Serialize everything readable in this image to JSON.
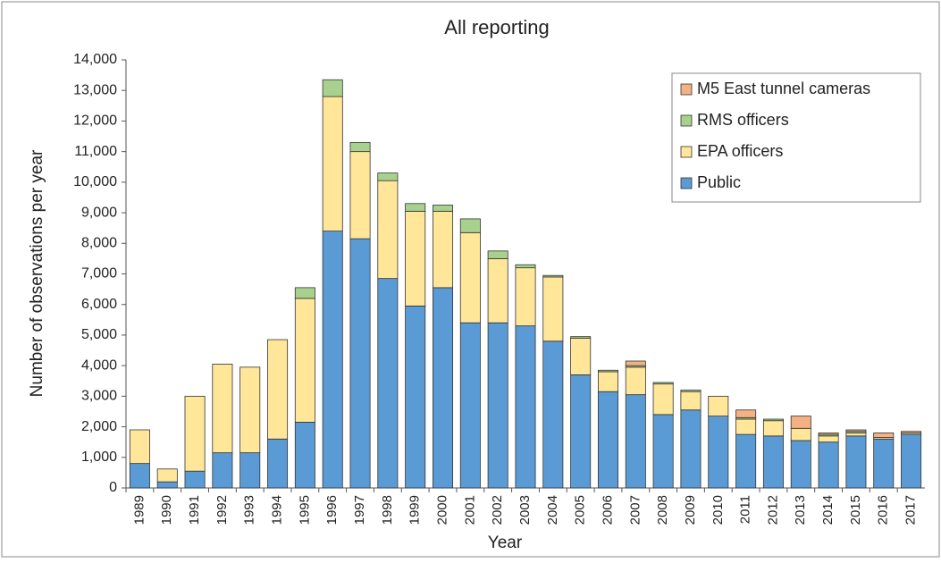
{
  "chart_data": {
    "type": "stacked_bar",
    "title": "All reporting",
    "x_label": "Year",
    "y_label": "Number of observations per year",
    "categories": [
      "1989",
      "1990",
      "1991",
      "1992",
      "1993",
      "1994",
      "1995",
      "1996",
      "1997",
      "1998",
      "1999",
      "2000",
      "2001",
      "2002",
      "2003",
      "2004",
      "2005",
      "2006",
      "2007",
      "2008",
      "2009",
      "2010",
      "2011",
      "2012",
      "2013",
      "2014",
      "2015",
      "2016",
      "2017"
    ],
    "series": [
      {
        "name": "Public",
        "color": "#5b9bd5",
        "values": [
          800,
          200,
          550,
          1150,
          1150,
          1600,
          2150,
          8400,
          8150,
          6850,
          5950,
          6550,
          5400,
          5400,
          5300,
          4800,
          3700,
          3150,
          3050,
          2400,
          2550,
          2350,
          1750,
          1700,
          1550,
          1500,
          1700,
          1600,
          1750
        ]
      },
      {
        "name": "EPA officers",
        "color": "#ffe699",
        "values": [
          1100,
          420,
          2450,
          2900,
          2800,
          3250,
          4050,
          4400,
          2850,
          3200,
          3100,
          2500,
          2950,
          2100,
          1900,
          2100,
          1200,
          650,
          900,
          1000,
          600,
          650,
          500,
          500,
          400,
          200,
          100,
          50,
          50
        ]
      },
      {
        "name": "RMS officers",
        "color": "#a9d18e",
        "values": [
          0,
          0,
          0,
          0,
          0,
          0,
          350,
          550,
          300,
          250,
          250,
          200,
          450,
          250,
          100,
          50,
          50,
          50,
          50,
          50,
          50,
          0,
          50,
          50,
          0,
          50,
          50,
          0,
          0
        ]
      },
      {
        "name": "M5 East tunnel cameras",
        "color": "#f4b183",
        "values": [
          0,
          0,
          0,
          0,
          0,
          0,
          0,
          0,
          0,
          0,
          0,
          0,
          0,
          0,
          0,
          0,
          0,
          0,
          150,
          0,
          0,
          0,
          250,
          0,
          400,
          50,
          50,
          150,
          50
        ]
      }
    ],
    "ylim": [
      0,
      14000
    ],
    "yticks": [
      0,
      {
        "value": 1000,
        "label": "1,000"
      },
      {
        "value": 2000,
        "label": "2,000"
      },
      {
        "value": 3000,
        "label": "3,000"
      },
      {
        "value": 4000,
        "label": "4,000"
      },
      {
        "value": 5000,
        "label": "5,000"
      },
      {
        "value": 6000,
        "label": "6,000"
      },
      {
        "value": 7000,
        "label": "7,000"
      },
      {
        "value": 8000,
        "label": "8,000"
      },
      {
        "value": 9000,
        "label": "9,000"
      },
      {
        "value": 10000,
        "label": "10,000"
      },
      {
        "value": 11000,
        "label": "11,000"
      },
      {
        "value": 12000,
        "label": "12,000"
      },
      {
        "value": 13000,
        "label": "13,000"
      },
      {
        "value": 14000,
        "label": "14,000"
      }
    ],
    "grid": false,
    "legend": "top-right"
  }
}
